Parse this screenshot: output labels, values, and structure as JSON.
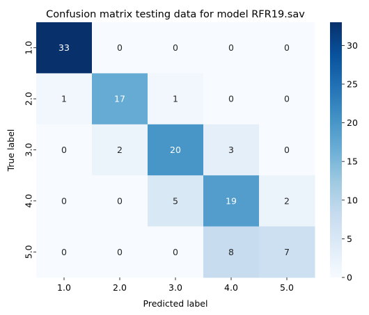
{
  "chart_data": {
    "type": "heatmap",
    "title": "Confusion matrix testing data for model RFR19.sav",
    "xlabel": "Predicted label",
    "ylabel": "True label",
    "x_categories": [
      "1.0",
      "2.0",
      "3.0",
      "4.0",
      "5.0"
    ],
    "y_categories": [
      "1.0",
      "2.0",
      "3.0",
      "4.0",
      "5.0"
    ],
    "values": [
      [
        33,
        0,
        0,
        0,
        0
      ],
      [
        1,
        17,
        1,
        0,
        0
      ],
      [
        0,
        2,
        20,
        3,
        0
      ],
      [
        0,
        0,
        5,
        19,
        2
      ],
      [
        0,
        0,
        0,
        8,
        7
      ]
    ],
    "colormap": "Blues",
    "color_range": [
      0,
      33
    ],
    "colorbar_ticks": [
      "0",
      "5",
      "10",
      "15",
      "20",
      "25",
      "30"
    ],
    "colorbar_tick_values": [
      0,
      5,
      10,
      15,
      20,
      25,
      30
    ],
    "annotation_colors": {
      "light": "#ffffff",
      "dark": "#262626"
    }
  }
}
